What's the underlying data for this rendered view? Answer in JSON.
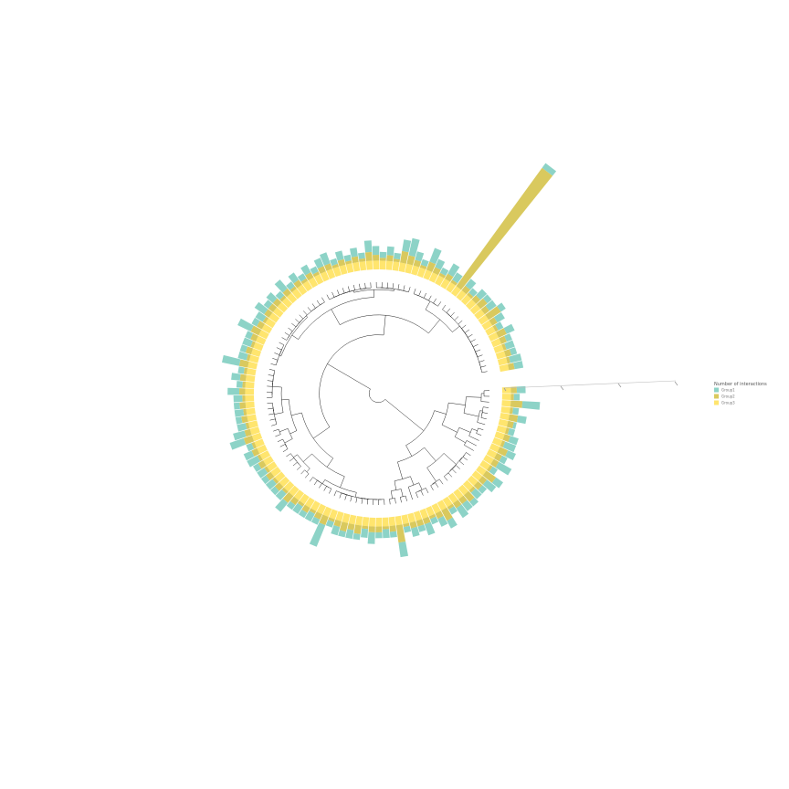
{
  "chart_data": {
    "type": "circular-tree-stacked-bar",
    "title": "",
    "xlabel": "",
    "ylabel": "",
    "grid": false,
    "legend": {
      "title": "Number of interactions",
      "placement": "right",
      "entries": [
        {
          "name": "Group1",
          "color": "#8dd3c7"
        },
        {
          "name": "Group2",
          "color": "#d9c95e"
        },
        {
          "name": "Group3",
          "color": "#ffe56e"
        }
      ]
    },
    "leaf_count": 120,
    "series": [
      {
        "name": "Group1",
        "values": [
          3,
          2,
          6,
          2,
          3,
          1,
          2,
          3,
          4,
          3,
          2,
          5,
          2,
          3,
          4,
          2,
          3,
          2,
          3,
          4,
          2,
          3,
          3,
          2,
          4,
          2,
          3,
          2,
          5,
          2,
          3,
          2,
          4,
          3,
          2,
          3,
          2,
          3,
          2,
          8,
          2,
          3,
          2,
          3,
          2,
          4,
          3,
          2,
          3,
          2,
          3,
          2,
          4,
          3,
          2,
          5,
          4,
          3,
          2,
          3,
          2,
          3,
          4,
          2,
          3,
          2,
          6,
          3,
          2,
          3,
          2,
          5,
          2,
          3,
          4,
          2,
          3,
          2,
          4,
          2,
          3,
          2,
          3,
          2,
          3,
          4,
          2,
          3,
          2,
          3,
          2,
          4,
          3,
          2,
          3,
          2,
          4,
          6,
          3,
          2,
          5,
          3,
          2,
          4,
          3,
          2,
          3,
          2,
          3,
          2,
          3,
          2,
          3,
          2,
          3,
          2,
          3,
          2,
          4,
          3
        ]
      },
      {
        "name": "Group2",
        "values": [
          2,
          1,
          4,
          1,
          3,
          2,
          1,
          2,
          1,
          3,
          2,
          2,
          1,
          4,
          2,
          2,
          1,
          3,
          2,
          2,
          1,
          4,
          2,
          1,
          2,
          2,
          2,
          1,
          6,
          2,
          1,
          2,
          2,
          1,
          3,
          2,
          3,
          2,
          1,
          3,
          2,
          1,
          2,
          1,
          2,
          3,
          1,
          2,
          1,
          2,
          1,
          2,
          1,
          2,
          1,
          3,
          2,
          1,
          2,
          1,
          2,
          1,
          2,
          1,
          2,
          1,
          3,
          1,
          2,
          1,
          2,
          3,
          2,
          1,
          2,
          2,
          2,
          1,
          2,
          1,
          2,
          1,
          2,
          1,
          2,
          2,
          1,
          2,
          1,
          2,
          1,
          3,
          2,
          1,
          2,
          1,
          4,
          3,
          2,
          1,
          3,
          2,
          1,
          2,
          1,
          50,
          2,
          1,
          2,
          3,
          2,
          5,
          2,
          1,
          3,
          2,
          1,
          2,
          1,
          2
        ]
      },
      {
        "name": "Group3",
        "values": [
          3,
          3,
          3,
          3,
          3,
          3,
          3,
          3,
          3,
          3,
          3,
          3,
          3,
          3,
          3,
          3,
          3,
          3,
          3,
          3,
          3,
          3,
          3,
          3,
          3,
          3,
          3,
          3,
          3,
          3,
          3,
          3,
          3,
          3,
          3,
          3,
          3,
          3,
          3,
          3,
          3,
          3,
          3,
          3,
          3,
          3,
          3,
          3,
          3,
          3,
          3,
          3,
          3,
          3,
          3,
          3,
          3,
          3,
          3,
          3,
          3,
          3,
          3,
          3,
          3,
          3,
          3,
          3,
          3,
          3,
          3,
          3,
          3,
          3,
          3,
          3,
          3,
          3,
          3,
          3,
          3,
          3,
          3,
          3,
          3,
          3,
          3,
          3,
          3,
          3,
          3,
          3,
          3,
          3,
          3,
          3,
          3,
          3,
          3,
          3,
          3,
          3,
          3,
          3,
          3,
          3,
          3,
          3,
          3,
          3,
          3,
          3,
          3,
          3,
          3,
          3,
          3,
          3,
          3,
          3
        ]
      }
    ]
  }
}
